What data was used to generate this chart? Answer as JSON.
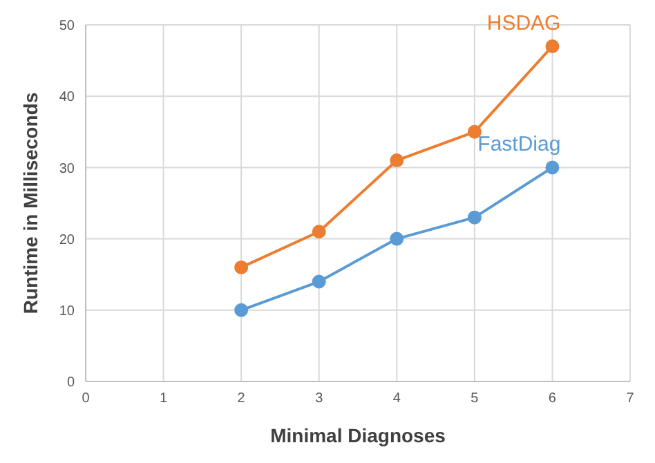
{
  "chart_data": {
    "type": "line",
    "xlabel": "Minimal Diagnoses",
    "ylabel": "Runtime in Milliseconds",
    "x": [
      2,
      3,
      4,
      5,
      6
    ],
    "series": [
      {
        "name": "HSDAG",
        "color": "#ed7d31",
        "values": [
          16,
          21,
          31,
          35,
          47
        ]
      },
      {
        "name": "FastDiag",
        "color": "#5b9bd5",
        "values": [
          10,
          14,
          20,
          23,
          30
        ]
      }
    ],
    "xlim": [
      0,
      7
    ],
    "xticks": [
      0,
      1,
      2,
      3,
      4,
      5,
      6,
      7
    ],
    "ylim": [
      0,
      50
    ],
    "yticks": [
      0,
      10,
      20,
      30,
      40,
      50
    ],
    "grid": true,
    "legend": false,
    "marker": "circle",
    "line_style": "solid"
  }
}
